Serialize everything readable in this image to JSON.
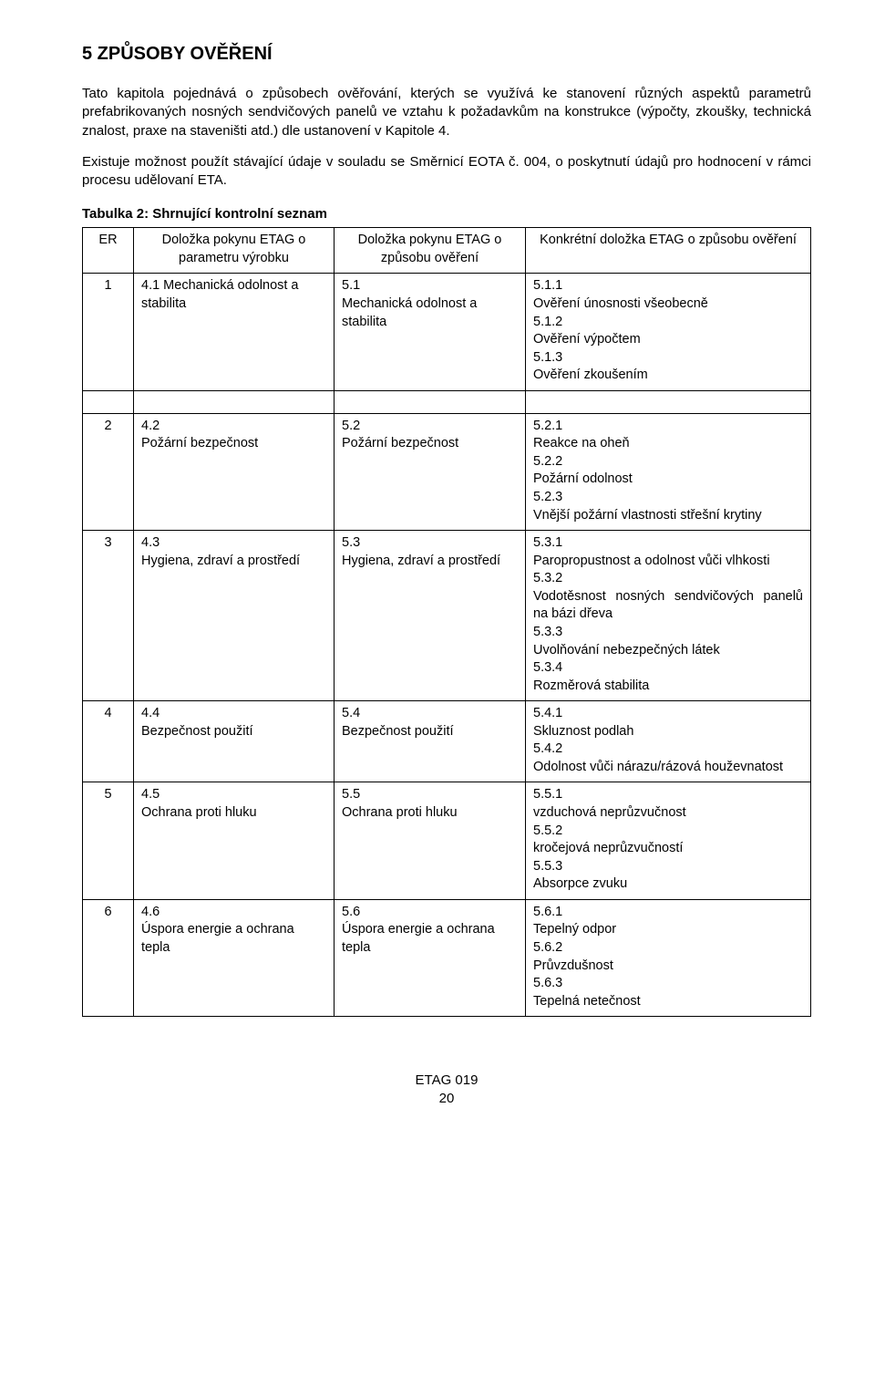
{
  "heading": "5  ZPŮSOBY OVĚŘENÍ",
  "para1": "Tato kapitola pojednává o způsobech ověřování, kterých se využívá ke stanovení různých aspektů parametrů prefabrikovaných nosných sendvičových panelů ve vztahu k požadavkům na konstrukce (výpočty, zkoušky, technická znalost, praxe na staveništi atd.) dle ustanovení v Kapitole 4.",
  "para2": "Existuje možnost použít stávající údaje v souladu se Směrnicí EOTA č. 004, o poskytnutí údajů pro hodnocení v rámci procesu udělovaní ETA.",
  "table_caption": "Tabulka 2:   Shrnující kontrolní seznam",
  "headers": {
    "er": "ER",
    "colA": "Doložka pokynu ETAG o parametru výrobku",
    "colB": "Doložka pokynu ETAG o způsobu ověření",
    "colC": "Konkrétní doložka ETAG o způsobu ověření"
  },
  "rows": [
    {
      "er": "1",
      "a": "4.1 Mechanická odolnost a stabilita",
      "b": "5.1\nMechanická odolnost a stabilita",
      "c": "5.1.1\nOvěření únosnosti všeobecně\n5.1.2\nOvěření výpočtem\n5.1.3\nOvěření zkoušením"
    },
    {
      "er": "2",
      "a": "4.2\nPožární bezpečnost",
      "b": "5.2\nPožární bezpečnost",
      "c": "5.2.1\nReakce na oheň\n5.2.2\nPožární odolnost\n5.2.3\nVnější požární vlastnosti střešní krytiny"
    },
    {
      "er": "3",
      "a": "4.3\nHygiena, zdraví a prostředí",
      "b": "5.3\nHygiena, zdraví a prostředí",
      "c": "5.3.1\nParopropustnost a odolnost vůči vlhkosti\n5.3.2\nVodotěsnost nosných sendvičových panelů na bázi dřeva\n5.3.3\nUvolňování nebezpečných látek\n5.3.4\nRozměrová stabilita",
      "c_justify": true
    },
    {
      "er": "4",
      "a": "4.4\nBezpečnost použití",
      "b": "5.4\nBezpečnost použití",
      "c": "5.4.1\nSkluznost podlah\n5.4.2\nOdolnost vůči nárazu/rázová houževnatost"
    },
    {
      "er": "5",
      "a": "4.5\nOchrana proti hluku",
      "b": "5.5\nOchrana proti hluku",
      "c": "5.5.1\nvzduchová neprůzvučnost\n5.5.2\nkročejová neprůzvučností\n5.5.3\nAbsorpce zvuku"
    },
    {
      "er": "6",
      "a": "4.6\n Úspora energie a ochrana tepla",
      "b": "5.6\n Úspora energie a ochrana tepla",
      "c": "5.6.1\nTepelný odpor\n5.6.2\nPrůvzdušnost\n5.6.3\nTepelná netečnost"
    }
  ],
  "footer_line1": "ETAG 019",
  "footer_line2": "20"
}
